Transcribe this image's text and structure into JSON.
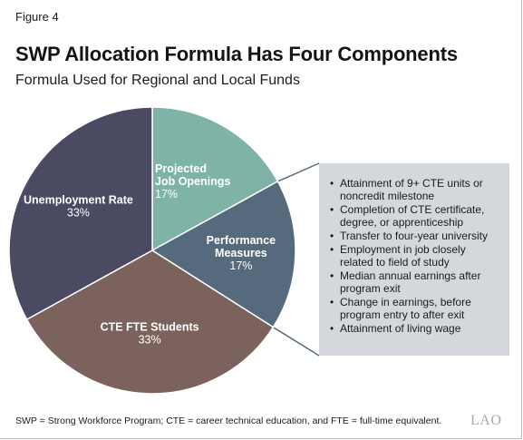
{
  "figure_label": "Figure 4",
  "title": "SWP Allocation Formula Has Four Components",
  "subtitle": "Formula Used for Regional and Local Funds",
  "chart_data": {
    "type": "pie",
    "unit": "%",
    "slices": [
      {
        "label_lines": [
          "Projected",
          "Job Openings"
        ],
        "value": 17,
        "value_label": "17%",
        "color": "#7fb3a8",
        "label_color": "#ffffff",
        "value_color": "#ffffff"
      },
      {
        "label_lines": [
          "Performance",
          "Measures"
        ],
        "value": 17,
        "value_label": "17%",
        "color": "#556b7d",
        "label_color": "#ffffff",
        "value_color": "#ffffff"
      },
      {
        "label_lines": [
          "CTE FTE Students"
        ],
        "value": 33,
        "value_label": "33%",
        "color": "#7b625d",
        "label_color": "#ffffff",
        "value_color": "#ffffff"
      },
      {
        "label_lines": [
          "Unemployment Rate"
        ],
        "value": 33,
        "value_label": "33%",
        "color": "#4b4a63",
        "label_color": "#ffffff",
        "value_color": "#ffffff"
      }
    ]
  },
  "callout": {
    "items": [
      "Attainment of 9+ CTE units or noncredit milestone",
      "Completion of CTE certificate, degree, or apprenticeship",
      "Transfer to four-year university",
      "Employment in job closely related to field of study",
      "Median annual earnings after program exit",
      "Change in earnings, before program entry to after exit",
      "Attainment of living wage"
    ]
  },
  "footnote": "SWP = Strong Workforce Program; CTE = career technical education, and FTE = full-time equivalent.",
  "logo_text": "LAO",
  "colors": {
    "callout_bg": "#d4d8dd",
    "connector": "#556b7d"
  }
}
